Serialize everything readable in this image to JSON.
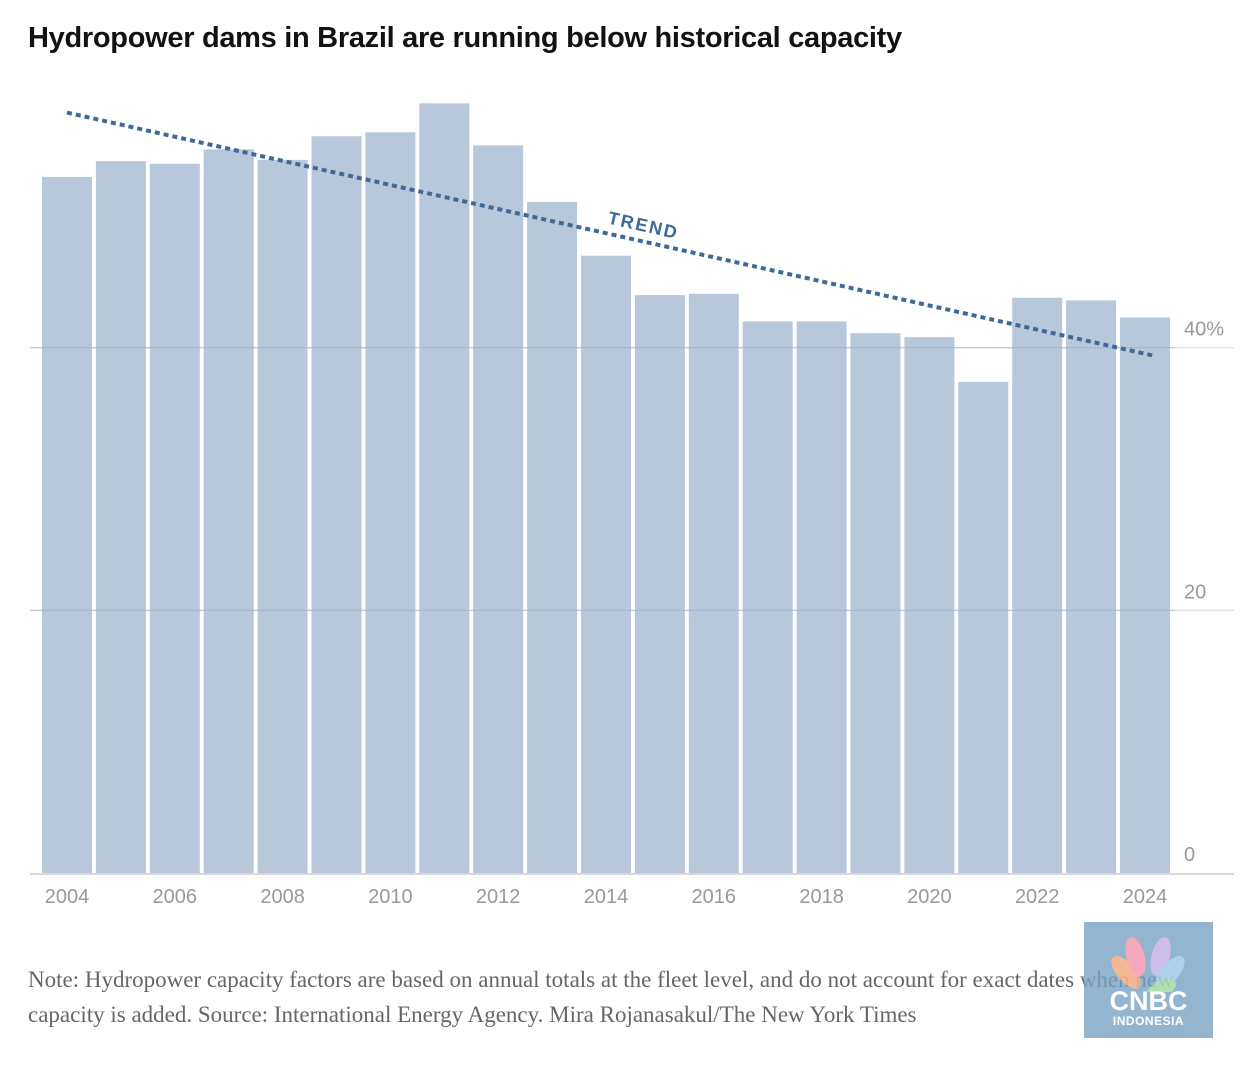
{
  "chart_data": {
    "type": "bar",
    "title": "Hydropower dams in Brazil are running below historical capacity",
    "categories": [
      "2004",
      "2005",
      "2006",
      "2007",
      "2008",
      "2009",
      "2010",
      "2011",
      "2012",
      "2013",
      "2014",
      "2015",
      "2016",
      "2017",
      "2018",
      "2019",
      "2020",
      "2021",
      "2022",
      "2023",
      "2024"
    ],
    "values": [
      53.0,
      54.2,
      54.0,
      55.1,
      54.3,
      56.1,
      56.4,
      58.6,
      55.4,
      51.1,
      47.0,
      44.0,
      44.1,
      42.0,
      42.0,
      41.1,
      40.8,
      37.4,
      43.8,
      43.6,
      42.3
    ],
    "xtick_labels": [
      "2004",
      "2006",
      "2008",
      "2010",
      "2012",
      "2014",
      "2016",
      "2018",
      "2020",
      "2022",
      "2024"
    ],
    "ytick_values": [
      0,
      20,
      40
    ],
    "ytick_labels": [
      "0",
      "20",
      "40%"
    ],
    "ylim": [
      0,
      60
    ],
    "trend": {
      "label": "TREND",
      "start": {
        "x": "2004",
        "y": 57.9
      },
      "end": {
        "x": "2024",
        "y": 39.4
      }
    },
    "xlabel": "",
    "ylabel": "",
    "grid": true,
    "bar_color": "#b8c7d9",
    "trend_color": "#3e6a99"
  },
  "note": "Note: Hydropower capacity factors are based on annual totals at the fleet level, and do not account for exact dates when new capacity is added.  Source: International Energy Agency.  Mira Rojanasakul/The New York Times",
  "watermark": {
    "brand": "CNBC",
    "sub": "INDONESIA"
  }
}
